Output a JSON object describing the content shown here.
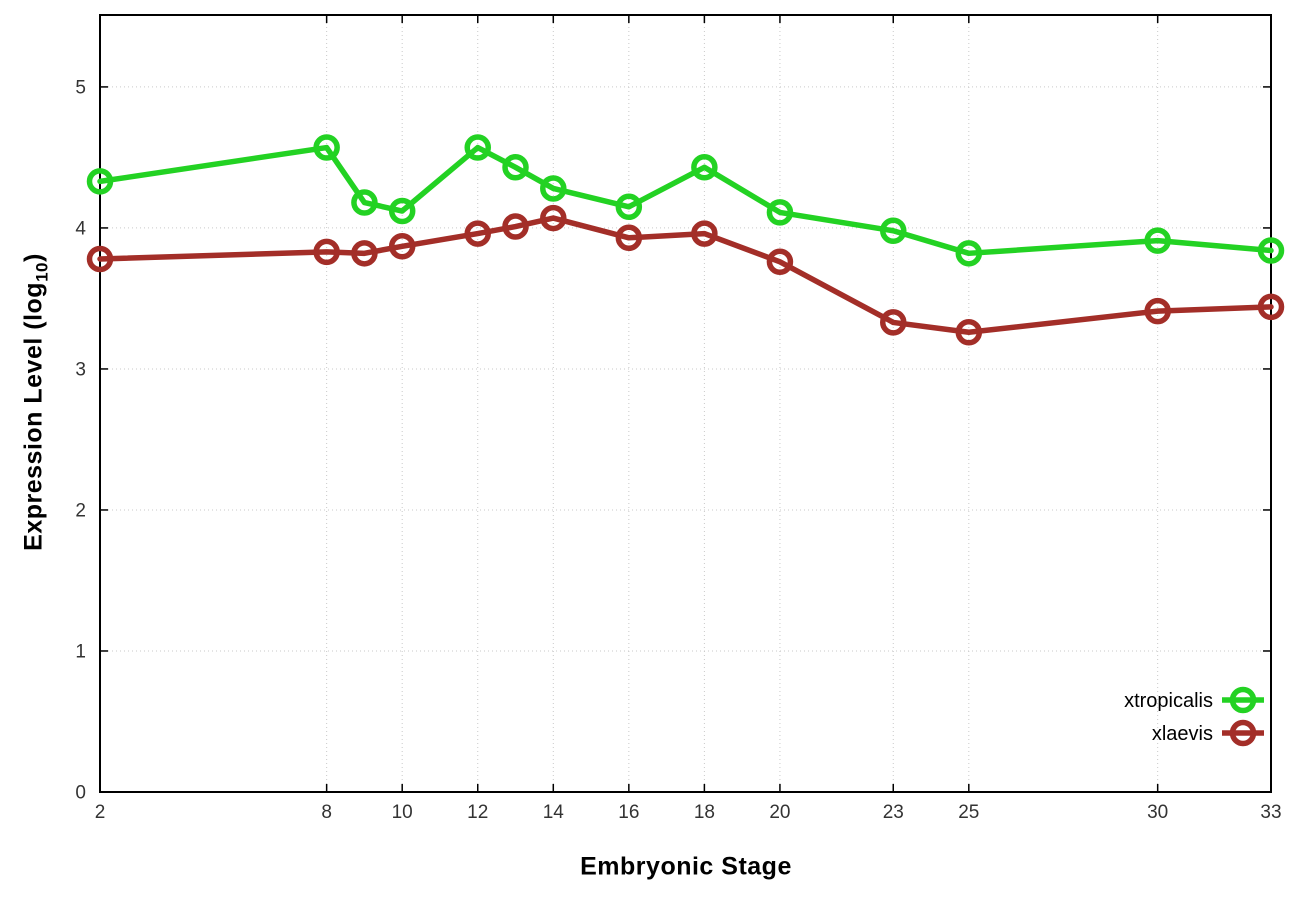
{
  "chart": {
    "xlabel": "Embryonic Stage",
    "ylabel_prefix": "Expression Level (log",
    "ylabel_sub": "10",
    "ylabel_suffix": ")"
  },
  "chart_data": {
    "type": "line",
    "title": "",
    "xlabel": "Embryonic Stage",
    "ylabel": "Expression Level (log10)",
    "x": [
      2,
      8,
      9,
      10,
      12,
      13,
      14,
      16,
      18,
      20,
      23,
      25,
      30,
      33
    ],
    "series": [
      {
        "name": "xtropicalis",
        "color": "#23d223",
        "marker": "open-circle",
        "values": [
          4.33,
          4.57,
          4.18,
          4.12,
          4.57,
          4.43,
          4.28,
          4.15,
          4.43,
          4.11,
          3.98,
          3.82,
          3.91,
          3.84
        ]
      },
      {
        "name": "xlaevis",
        "color": "#a32e28",
        "marker": "open-circle",
        "values": [
          3.78,
          3.83,
          3.82,
          3.87,
          3.96,
          4.01,
          4.07,
          3.93,
          3.96,
          3.76,
          3.33,
          3.26,
          3.41,
          3.44
        ]
      }
    ],
    "xticks": [
      2,
      8,
      10,
      12,
      14,
      16,
      18,
      20,
      23,
      25,
      30,
      33
    ],
    "yticks": [
      0,
      1,
      2,
      3,
      4,
      5
    ],
    "xlim": [
      2,
      33
    ],
    "ylim": [
      0,
      5.51
    ],
    "grid": true,
    "legend_position": "bottom-right"
  },
  "styles": {
    "grid_color": "#c9c9c9",
    "border_color": "#000000",
    "tick_label_color": "#333333",
    "legend_text_color": "#000000",
    "background": "#ffffff"
  }
}
